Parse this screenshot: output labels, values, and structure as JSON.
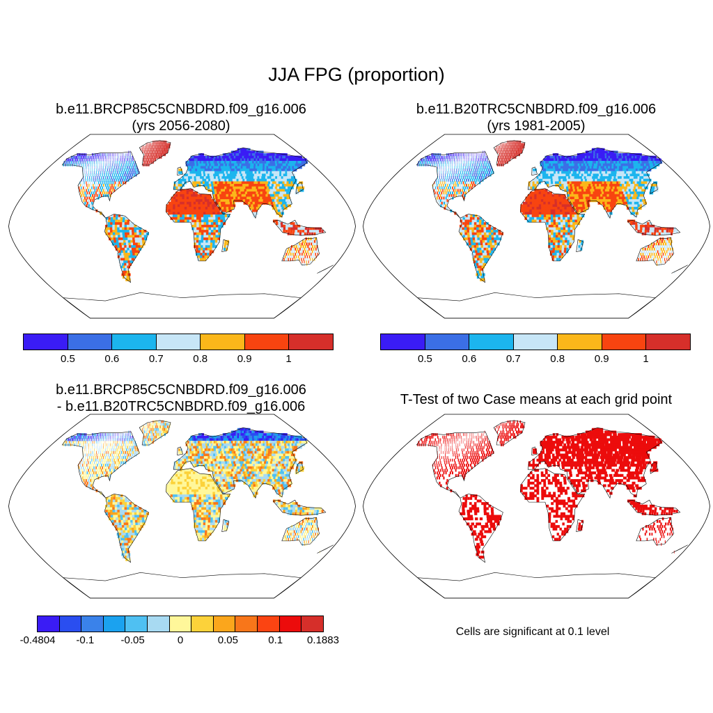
{
  "figure": {
    "title": "JJA FPG (proportion)"
  },
  "panels": [
    {
      "id": "future",
      "title_line1": "b.e11.BRCP85C5CNBDRD.f09_g16.006",
      "title_line2": "(yrs 2056-2080)"
    },
    {
      "id": "historical",
      "title_line1": "b.e11.B20TRC5CNBDRD.f09_g16.006",
      "title_line2": "(yrs 1981-2005)"
    },
    {
      "id": "difference",
      "title_line1": "b.e11.BRCP85C5CNBDRD.f09_g16.006",
      "title_line2": "- b.e11.B20TRC5CNBDRD.f09_g16.006"
    },
    {
      "id": "ttest",
      "title_line1": "T-Test of two Case means at each grid point",
      "note": "Cells are significant at 0.1 level"
    }
  ],
  "colorbars": {
    "absolute": {
      "colors": [
        "#3a1cf5",
        "#3b6fe6",
        "#1cb5ee",
        "#c7e6f7",
        "#fbb71a",
        "#f84410",
        "#d62f2a"
      ],
      "labels": [
        "0.5",
        "0.6",
        "0.7",
        "0.8",
        "0.9",
        "1"
      ]
    },
    "difference": {
      "colors": [
        "#3a1cf5",
        "#2a4ef0",
        "#3a82ea",
        "#1ba2ef",
        "#4fc0f2",
        "#a8daf2",
        "#fff79a",
        "#fcd23a",
        "#fba61c",
        "#f8761a",
        "#fb4412",
        "#ec0c0c",
        "#d62f2a"
      ],
      "labels": [
        "-0.4804",
        "-0.1",
        "-0.05",
        "0",
        "0.05",
        "0.1",
        "0.1883"
      ]
    }
  },
  "colors": {
    "significant": "#ec0c0c",
    "coast": "#000000"
  }
}
